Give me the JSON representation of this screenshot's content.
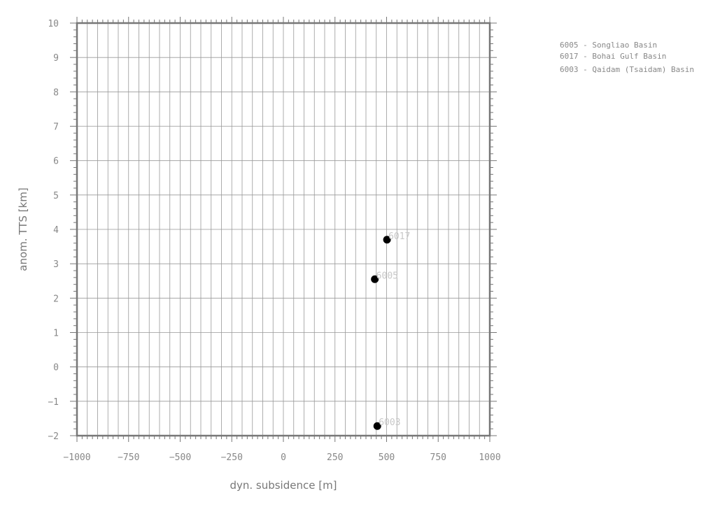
{
  "chart_data": {
    "type": "scatter",
    "xlabel": "dyn. subsidence [m]",
    "ylabel": "anom. TTS [km]",
    "xlim": [
      -1000,
      1000
    ],
    "ylim": [
      -2,
      10
    ],
    "x_ticks": [
      -1000,
      -750,
      -500,
      -250,
      0,
      250,
      500,
      750,
      1000
    ],
    "x_tick_labels": [
      "−1000",
      "−750",
      "−500",
      "−250",
      "0",
      "250",
      "500",
      "750",
      "1000"
    ],
    "y_ticks": [
      -2,
      -1,
      0,
      1,
      2,
      3,
      4,
      5,
      6,
      7,
      8,
      9,
      10
    ],
    "y_tick_labels": [
      "−2",
      "−1",
      "0",
      "1",
      "2",
      "3",
      "4",
      "5",
      "6",
      "7",
      "8",
      "9",
      "10"
    ],
    "grid": true,
    "legend_position": "top-right",
    "points": [
      {
        "label": "6017",
        "x": 502,
        "y": 3.7
      },
      {
        "label": "6005",
        "x": 443,
        "y": 2.55
      },
      {
        "label": "6003",
        "x": 455,
        "y": -1.72
      }
    ],
    "legend": [
      "6005 - Songliao Basin",
      "6017 - Bohai Gulf Basin",
      "6003 - Qaidam (Tsaidam) Basin"
    ],
    "colors": {
      "point": "#000000",
      "grid": "#999999",
      "frame": "#777777",
      "tick_text": "#888888",
      "point_label": "#c8c8c8"
    }
  }
}
